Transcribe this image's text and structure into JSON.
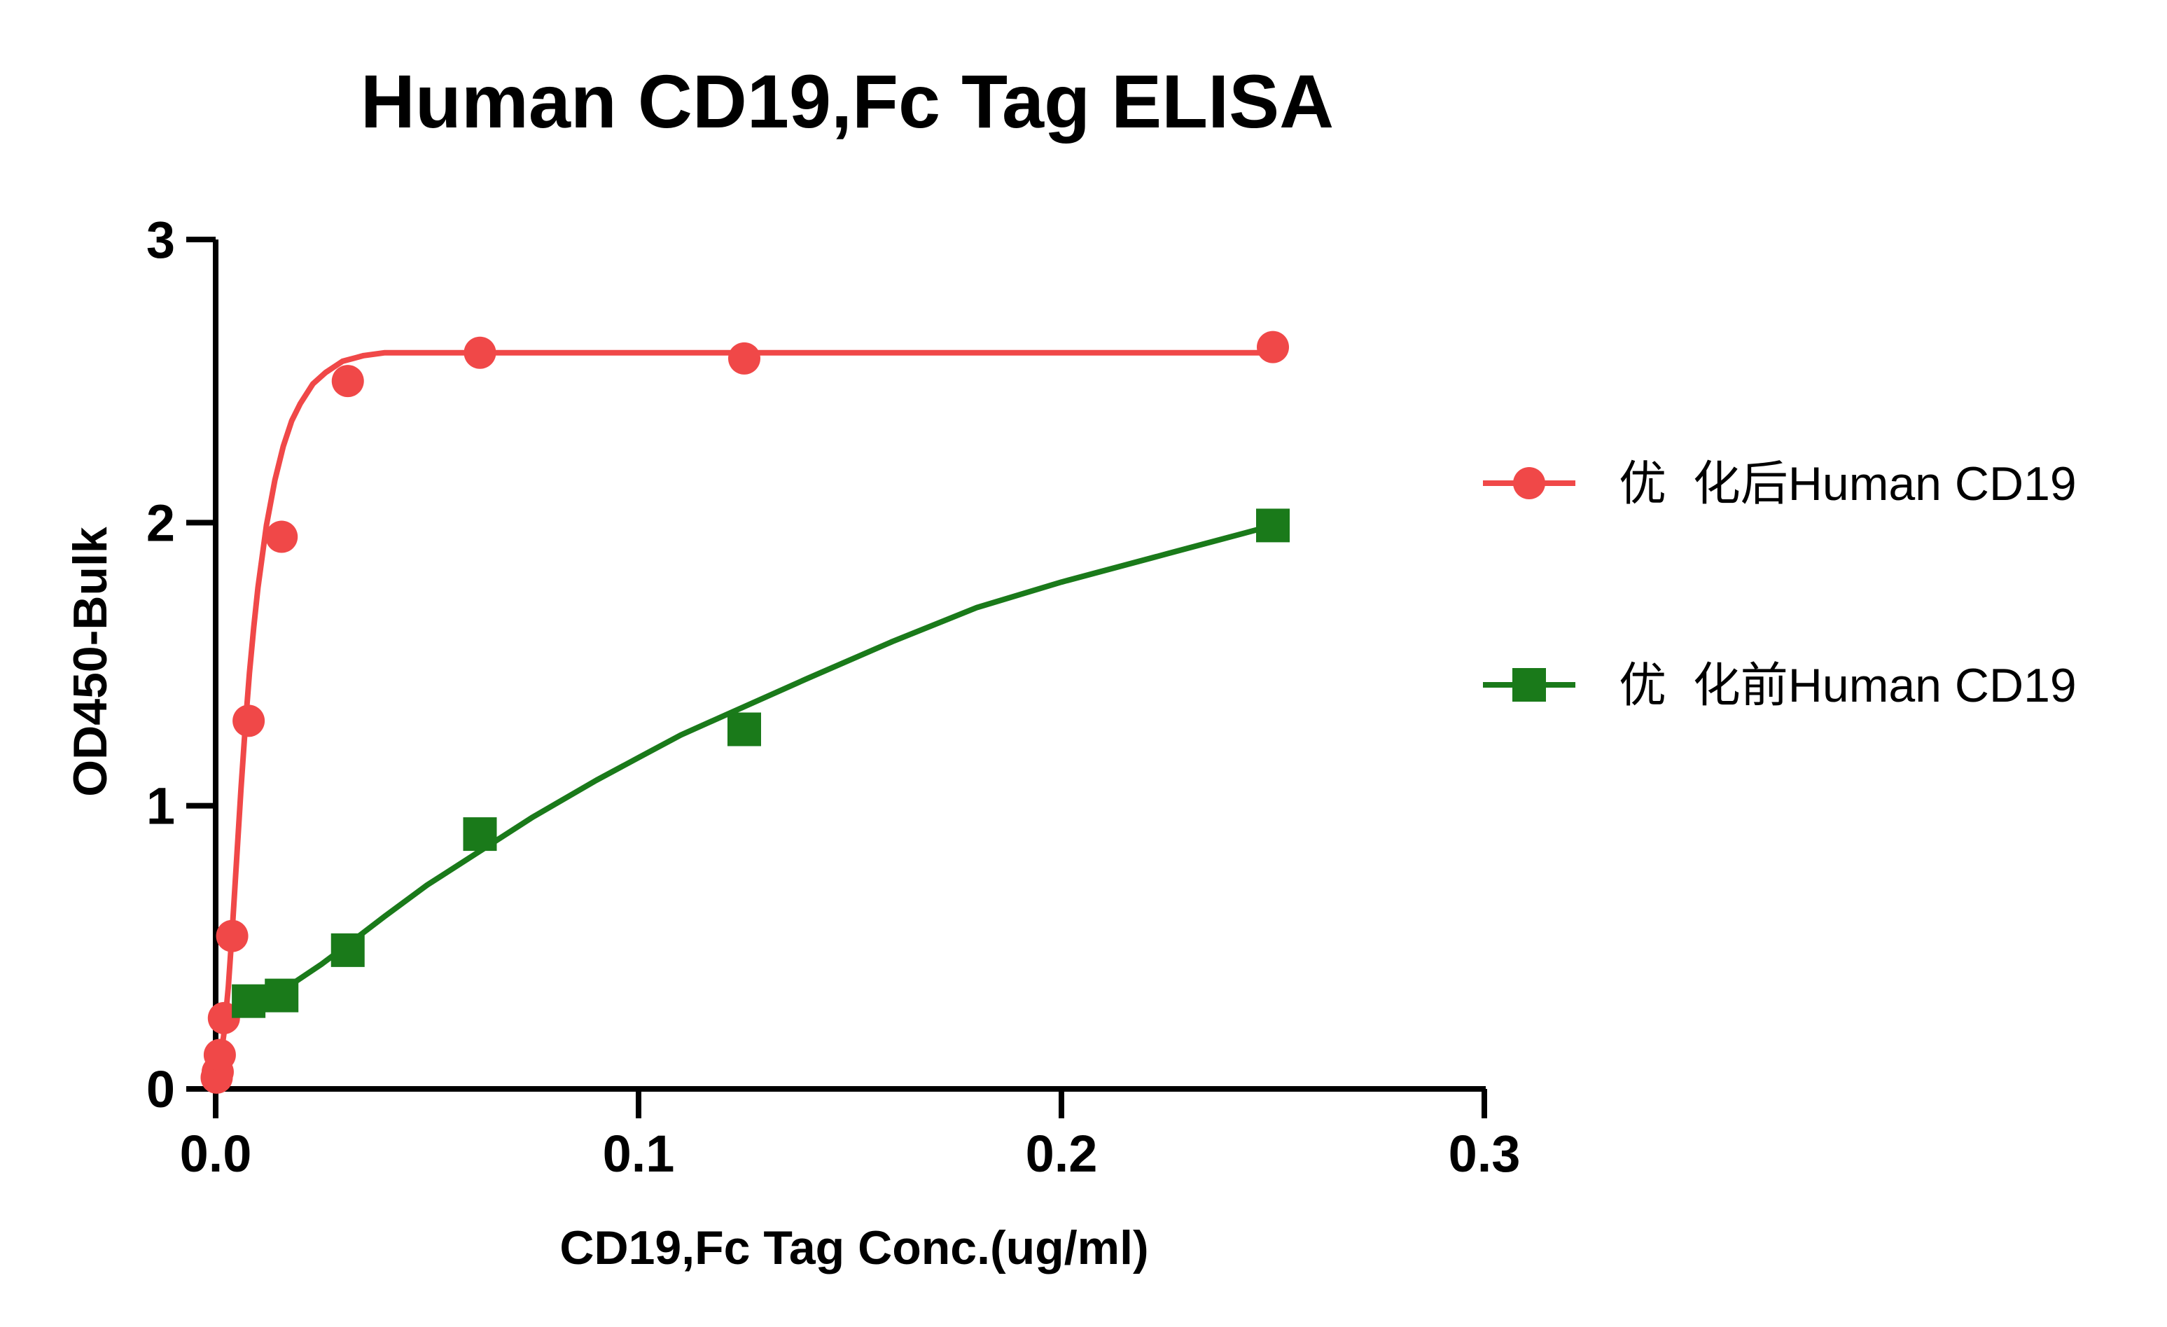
{
  "chart_data": {
    "type": "scatter",
    "title": "Human CD19,Fc Tag ELISA",
    "xlabel": "CD19,Fc Tag Conc.(ug/ml)",
    "ylabel": "OD450-Bulk",
    "xlim": [
      0,
      0.3
    ],
    "ylim": [
      0,
      3
    ],
    "x_ticks": [
      "0.0",
      "0.1",
      "0.2",
      "0.3"
    ],
    "x_tick_values": [
      0,
      0.1,
      0.2,
      0.3
    ],
    "y_ticks": [
      "0",
      "1",
      "2",
      "3"
    ],
    "y_tick_values": [
      0,
      1,
      2,
      3
    ],
    "grid": false,
    "legend_position": "right",
    "series": [
      {
        "name": "优  化后Human CD19",
        "color": "#f04848",
        "marker": "circle",
        "x": [
          0.000244,
          0.000488,
          0.000977,
          0.00195,
          0.0039,
          0.0078,
          0.0156,
          0.03125,
          0.0625,
          0.125,
          0.25
        ],
        "y": [
          0.04,
          0.06,
          0.12,
          0.25,
          0.54,
          1.3,
          1.95,
          2.5,
          2.6,
          2.58,
          2.62
        ],
        "fit_curve": {
          "x": [
            0.0,
            0.001,
            0.002,
            0.003,
            0.004,
            0.005,
            0.006,
            0.007,
            0.008,
            0.009,
            0.01,
            0.012,
            0.014,
            0.016,
            0.018,
            0.02,
            0.023,
            0.026,
            0.03,
            0.035,
            0.04,
            0.045,
            0.05,
            0.06,
            0.08,
            0.1,
            0.15,
            0.2,
            0.25
          ],
          "y": [
            0.03,
            0.09,
            0.2,
            0.36,
            0.58,
            0.82,
            1.06,
            1.28,
            1.47,
            1.63,
            1.77,
            1.99,
            2.15,
            2.27,
            2.36,
            2.42,
            2.49,
            2.53,
            2.57,
            2.59,
            2.6,
            2.6,
            2.6,
            2.6,
            2.6,
            2.6,
            2.6,
            2.6,
            2.6
          ]
        }
      },
      {
        "name": "优  化前Human CD19",
        "color": "#1a7a1a",
        "marker": "square",
        "x": [
          0.0078,
          0.0156,
          0.03125,
          0.0625,
          0.125,
          0.25
        ],
        "y": [
          0.31,
          0.33,
          0.49,
          0.9,
          1.27,
          1.99
        ],
        "fit_curve": {
          "x": [
            0.006,
            0.01,
            0.015,
            0.02,
            0.025,
            0.03125,
            0.04,
            0.05,
            0.0625,
            0.075,
            0.09,
            0.1,
            0.11,
            0.125,
            0.14,
            0.16,
            0.18,
            0.2,
            0.225,
            0.25
          ],
          "y": [
            0.27,
            0.3,
            0.34,
            0.39,
            0.44,
            0.51,
            0.61,
            0.72,
            0.84,
            0.96,
            1.09,
            1.17,
            1.25,
            1.35,
            1.45,
            1.58,
            1.7,
            1.79,
            1.89,
            1.99
          ]
        }
      }
    ]
  }
}
